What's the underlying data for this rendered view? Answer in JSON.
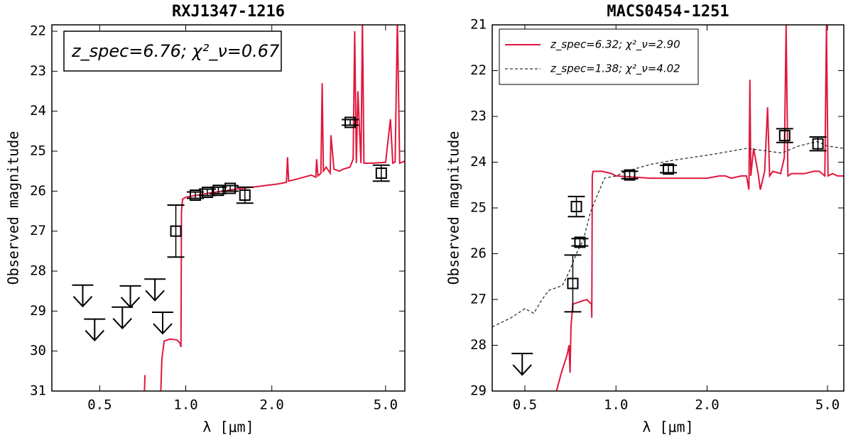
{
  "chart_data": [
    {
      "type": "line",
      "title": "RXJ1347-1216",
      "xlabel": "λ [μm]",
      "ylabel": "Observed magnitude",
      "xscale": "log",
      "xlim": [
        0.34,
        5.84
      ],
      "xticks": [
        0.5,
        {
          "value": 1,
          "label": "1.0"
        },
        {
          "value": 2,
          "label": "2.0"
        },
        {
          "value": 5,
          "label": "5.0"
        }
      ],
      "ylim": [
        31,
        21.84
      ],
      "yticks": [
        22,
        23,
        24,
        25,
        26,
        27,
        28,
        29,
        30,
        31
      ],
      "annotation": "z_spec=6.76;  χ²_ν=0.67",
      "series": [
        {
          "style": "line",
          "color": "#e0173d",
          "x": [
            0.717,
            0.72,
            0.75,
            0.818,
            0.825,
            0.84,
            0.88,
            0.93,
            0.955,
            0.962,
            0.966,
            0.975,
            1.0,
            1.2,
            1.5,
            1.8,
            2.1,
            2.25,
            2.27,
            2.29,
            2.5,
            2.75,
            2.85,
            2.87,
            2.9,
            2.97,
            3.0,
            3.03,
            3.1,
            3.2,
            3.22,
            3.3,
            3.45,
            3.55,
            3.75,
            3.85,
            3.9,
            3.95,
            4.0,
            4.1,
            4.15,
            4.2,
            4.5,
            5.0,
            5.2,
            5.3,
            5.4,
            5.5,
            5.6,
            5.84
          ],
          "values": [
            31,
            30.6,
            null,
            31,
            30.2,
            29.75,
            29.7,
            29.72,
            29.8,
            29.9,
            26.5,
            26.2,
            26.15,
            26.05,
            25.95,
            25.88,
            25.82,
            25.78,
            25.15,
            25.75,
            25.68,
            25.6,
            25.65,
            25.2,
            25.62,
            25.55,
            23.3,
            25.5,
            25.4,
            25.55,
            24.6,
            25.45,
            25.5,
            25.45,
            25.4,
            25.2,
            22.0,
            25.3,
            23.5,
            25.3,
            21.7,
            25.3,
            25.3,
            25.28,
            24.2,
            25.3,
            25.27,
            21.7,
            25.3,
            25.25
          ]
        },
        {
          "style": "errorbar",
          "color": "#000000",
          "x": [
            0.923,
            1.08,
            1.19,
            1.3,
            1.43,
            1.61,
            3.76,
            4.83
          ],
          "values": [
            27.0,
            26.1,
            26.03,
            25.98,
            25.93,
            26.1,
            24.28,
            25.55
          ],
          "errors": [
            0.65,
            0.08,
            0.08,
            0.08,
            0.07,
            0.2,
            0.07,
            0.2
          ]
        },
        {
          "style": "upper_limit",
          "color": "#000000",
          "x": [
            0.436,
            0.48,
            0.6,
            0.64,
            0.78,
            0.83
          ],
          "values": [
            28.35,
            29.2,
            28.9,
            28.37,
            28.2,
            29.03
          ]
        }
      ]
    },
    {
      "type": "line",
      "title": "MACS0454-1251",
      "xlabel": "λ [μm]",
      "ylabel": "Observed magnitude",
      "xscale": "log",
      "xlim": [
        0.39,
        5.66
      ],
      "xticks": [
        0.5,
        {
          "value": 1,
          "label": "1.0"
        },
        {
          "value": 2,
          "label": "2.0"
        },
        {
          "value": 5,
          "label": "5.0"
        }
      ],
      "ylim": [
        29,
        21
      ],
      "yticks": [
        21,
        22,
        23,
        24,
        25,
        26,
        27,
        28,
        29
      ],
      "legend": "upper left",
      "series": [
        {
          "style": "line",
          "name": "z_spec=6.32;  χ²_ν=2.90",
          "color": "#e0173d",
          "x": [
            0.636,
            0.66,
            0.69,
            0.7,
            0.705,
            0.71,
            0.72,
            0.76,
            0.8,
            0.83,
            0.832,
            0.835,
            0.84,
            0.9,
            0.968,
            1.0,
            1.3,
            1.7,
            2.0,
            2.2,
            2.3,
            2.4,
            2.6,
            2.7,
            2.75,
            2.77,
            2.79,
            2.85,
            2.95,
            3.0,
            3.1,
            3.17,
            3.22,
            3.3,
            3.5,
            3.6,
            3.65,
            3.7,
            3.8,
            4.2,
            4.5,
            4.7,
            4.9,
            4.96,
            5.02,
            5.2,
            5.4,
            5.66
          ],
          "values": [
            29.0,
            28.6,
            28.2,
            28.0,
            28.6,
            27.6,
            27.1,
            27.05,
            27.0,
            27.1,
            27.4,
            24.3,
            24.2,
            24.2,
            24.25,
            24.3,
            24.35,
            24.35,
            24.35,
            24.3,
            24.3,
            24.35,
            24.3,
            24.3,
            24.6,
            22.2,
            24.3,
            23.7,
            24.25,
            24.6,
            24.2,
            22.8,
            24.3,
            24.2,
            24.25,
            23.9,
            21.0,
            24.3,
            24.25,
            24.25,
            24.2,
            24.2,
            24.3,
            21.0,
            24.3,
            24.25,
            24.3,
            24.3
          ]
        },
        {
          "style": "dashed",
          "name": "z_spec=1.38;  χ²_ν=4.02",
          "color": "#333333",
          "x": [
            0.39,
            0.45,
            0.5,
            0.535,
            0.57,
            0.6,
            0.664,
            0.7,
            0.74,
            0.78,
            0.823,
            0.87,
            0.917,
            1.0,
            1.08,
            1.3,
            1.57,
            2.0,
            2.7,
            3.1,
            3.53,
            4.0,
            4.62,
            5.0,
            5.66
          ],
          "values": [
            27.6,
            27.4,
            27.2,
            27.3,
            27.0,
            26.8,
            26.7,
            26.4,
            26.0,
            25.7,
            25.1,
            24.7,
            24.35,
            24.3,
            24.2,
            24.05,
            23.95,
            23.85,
            23.7,
            23.75,
            23.8,
            23.65,
            23.55,
            23.65,
            23.7
          ]
        },
        {
          "style": "errorbar",
          "color": "#000000",
          "x": [
            0.72,
            0.74,
            0.76,
            1.11,
            1.49,
            3.61,
            4.65
          ],
          "values": [
            26.65,
            24.97,
            25.75,
            24.28,
            24.15,
            23.42,
            23.6
          ],
          "errors": [
            0.62,
            0.22,
            0.08,
            0.08,
            0.08,
            0.15,
            0.15
          ]
        },
        {
          "style": "upper_limit",
          "color": "#000000",
          "x": [
            0.49
          ],
          "values": [
            28.18
          ]
        }
      ]
    }
  ]
}
